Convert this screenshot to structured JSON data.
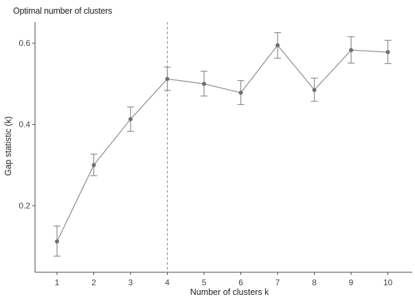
{
  "chart_data": {
    "type": "line",
    "title": "Optimal number of clusters",
    "xlabel": "Number of clusters k",
    "ylabel": "Gap statistic (k)",
    "categories": [
      "1",
      "2",
      "3",
      "4",
      "5",
      "6",
      "7",
      "8",
      "9",
      "10"
    ],
    "x": [
      1,
      2,
      3,
      4,
      5,
      6,
      7,
      8,
      9,
      10
    ],
    "series": [
      {
        "name": "Gap statistic",
        "values": [
          0.112,
          0.3,
          0.413,
          0.512,
          0.5,
          0.478,
          0.595,
          0.485,
          0.583,
          0.578
        ],
        "error_lower": [
          0.076,
          0.274,
          0.383,
          0.484,
          0.47,
          0.449,
          0.563,
          0.457,
          0.551,
          0.55
        ],
        "error_upper": [
          0.15,
          0.327,
          0.443,
          0.541,
          0.531,
          0.508,
          0.626,
          0.514,
          0.616,
          0.607
        ]
      }
    ],
    "optimal_k": 4,
    "yticks": [
      0.2,
      0.4,
      0.6
    ],
    "ytick_labels": [
      "0.2",
      "0.4",
      "0.6"
    ],
    "ylim": [
      0.05,
      0.66
    ],
    "xlim": [
      0.6,
      10.7
    ],
    "grid": false,
    "legend": "none",
    "annotations": [
      {
        "type": "vline",
        "x": 4,
        "style": "dashed"
      }
    ],
    "colors": {
      "line": "#8a8a8a",
      "point": "#6e6e6e",
      "errorbar": "#8a8a8a",
      "vline": "#8a8a8a",
      "axis": "#444444"
    }
  }
}
